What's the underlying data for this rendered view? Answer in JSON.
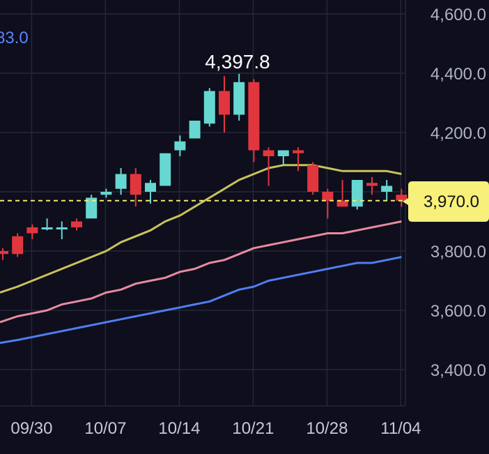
{
  "colors": {
    "background": "#0e0e1c",
    "grid": "#23283a",
    "up": "#67d7d1",
    "down": "#e2363f",
    "ma_short": "#c9c35a",
    "ma_mid": "#e88aa0",
    "ma_long": "#4f7ef0",
    "price_line": "#f2ea6b",
    "price_tag_bg": "#f7f07a"
  },
  "top_left_value": "83.0",
  "peak_label": "4,397.8",
  "current_price_label": "3,970.0",
  "chart_data": {
    "type": "candlestick",
    "y_ticks": [
      "4,600.0",
      "4,400.0",
      "4,200.0",
      "3,800.0",
      "3,600.0",
      "3,400.0"
    ],
    "x_ticks": [
      "09/30",
      "10/07",
      "10/14",
      "10/21",
      "10/28",
      "11/04"
    ],
    "ylim": [
      3280,
      4650
    ],
    "grid": true,
    "candles": [
      {
        "date": "09/26",
        "open": 3800,
        "high": 3810,
        "low": 3770,
        "close": 3790
      },
      {
        "date": "09/27",
        "open": 3850,
        "high": 3860,
        "low": 3780,
        "close": 3790
      },
      {
        "date": "09/30",
        "open": 3880,
        "high": 3890,
        "low": 3840,
        "close": 3860
      },
      {
        "date": "10/01",
        "open": 3880,
        "high": 3910,
        "low": 3870,
        "close": 3880
      },
      {
        "date": "10/02",
        "open": 3880,
        "high": 3900,
        "low": 3840,
        "close": 3880
      },
      {
        "date": "10/03",
        "open": 3900,
        "high": 3910,
        "low": 3870,
        "close": 3880
      },
      {
        "date": "10/04",
        "open": 3910,
        "high": 3990,
        "low": 3910,
        "close": 3980
      },
      {
        "date": "10/07",
        "open": 3990,
        "high": 4010,
        "low": 3980,
        "close": 4000
      },
      {
        "date": "10/08",
        "open": 4010,
        "high": 4080,
        "low": 3990,
        "close": 4060
      },
      {
        "date": "10/09",
        "open": 4060,
        "high": 4080,
        "low": 3950,
        "close": 3990
      },
      {
        "date": "10/10",
        "open": 4000,
        "high": 4040,
        "low": 3960,
        "close": 4030
      },
      {
        "date": "10/11",
        "open": 4020,
        "high": 4130,
        "low": 4020,
        "close": 4130
      },
      {
        "date": "10/14",
        "open": 4140,
        "high": 4190,
        "low": 4120,
        "close": 4170
      },
      {
        "date": "10/15",
        "open": 4180,
        "high": 4240,
        "low": 4180,
        "close": 4240
      },
      {
        "date": "10/16",
        "open": 4230,
        "high": 4350,
        "low": 4220,
        "close": 4340
      },
      {
        "date": "10/17",
        "open": 4340,
        "high": 4390,
        "low": 4200,
        "close": 4260
      },
      {
        "date": "10/18",
        "open": 4260,
        "high": 4397.8,
        "low": 4240,
        "close": 4370
      },
      {
        "date": "10/21",
        "open": 4370,
        "high": 4380,
        "low": 4100,
        "close": 4140
      },
      {
        "date": "10/22",
        "open": 4140,
        "high": 4150,
        "low": 4020,
        "close": 4120
      },
      {
        "date": "10/23",
        "open": 4120,
        "high": 4140,
        "low": 4090,
        "close": 4140
      },
      {
        "date": "10/24",
        "open": 4140,
        "high": 4150,
        "low": 4070,
        "close": 4130
      },
      {
        "date": "10/25",
        "open": 4090,
        "high": 4100,
        "low": 3990,
        "close": 4000
      },
      {
        "date": "10/28",
        "open": 4000,
        "high": 4010,
        "low": 3910,
        "close": 3970
      },
      {
        "date": "10/29",
        "open": 3970,
        "high": 4040,
        "low": 3950,
        "close": 3950
      },
      {
        "date": "10/30",
        "open": 3950,
        "high": 4040,
        "low": 3940,
        "close": 4040
      },
      {
        "date": "10/31",
        "open": 4030,
        "high": 4050,
        "low": 3990,
        "close": 4020
      },
      {
        "date": "11/01",
        "open": 4000,
        "high": 4040,
        "low": 3970,
        "close": 4020
      },
      {
        "date": "11/04",
        "open": 3990,
        "high": 4010,
        "low": 3950,
        "close": 3970
      }
    ],
    "moving_averages": [
      {
        "color_key": "ma_short",
        "values": [
          3660,
          3680,
          3700,
          3720,
          3740,
          3760,
          3780,
          3800,
          3830,
          3850,
          3870,
          3900,
          3920,
          3950,
          3980,
          4010,
          4040,
          4060,
          4080,
          4090,
          4090,
          4090,
          4080,
          4070,
          4070,
          4070,
          4070,
          4060
        ]
      },
      {
        "color_key": "ma_mid",
        "values": [
          3560,
          3580,
          3590,
          3600,
          3620,
          3630,
          3640,
          3660,
          3670,
          3690,
          3700,
          3710,
          3730,
          3740,
          3760,
          3770,
          3790,
          3810,
          3820,
          3830,
          3840,
          3850,
          3860,
          3860,
          3870,
          3880,
          3890,
          3900
        ]
      },
      {
        "color_key": "ma_long",
        "values": [
          3490,
          3500,
          3510,
          3520,
          3530,
          3540,
          3550,
          3560,
          3570,
          3580,
          3590,
          3600,
          3610,
          3620,
          3630,
          3650,
          3670,
          3680,
          3700,
          3710,
          3720,
          3730,
          3740,
          3750,
          3760,
          3760,
          3770,
          3780
        ]
      }
    ],
    "current_price": 3970.0
  }
}
